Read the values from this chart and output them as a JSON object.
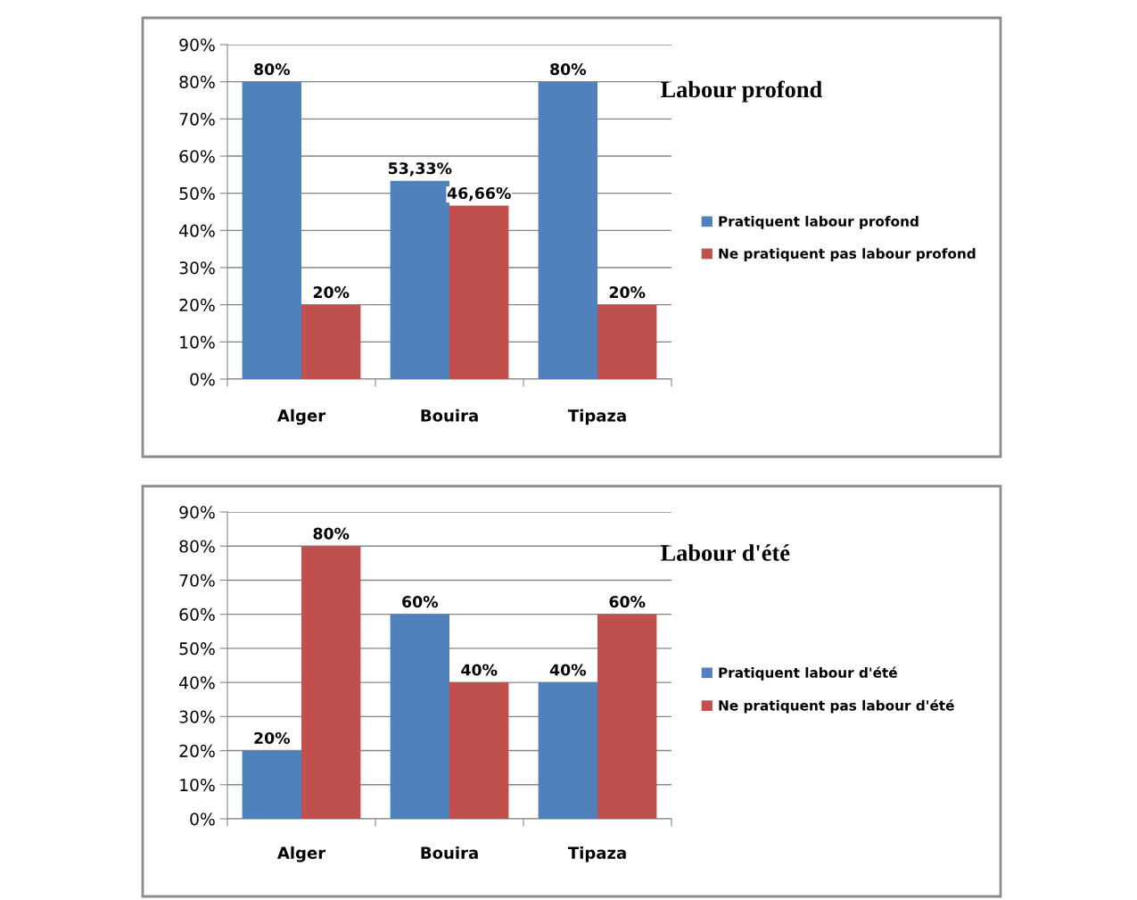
{
  "chart_data": [
    {
      "type": "bar",
      "title": "Labour profond",
      "categories": [
        "Alger",
        "Bouira",
        "Tipaza"
      ],
      "series": [
        {
          "name": "Pratiquent labour profond",
          "color": "#4f81bd",
          "values": [
            80,
            53.33,
            80
          ],
          "value_labels": [
            "80%",
            "53,33%",
            "80%"
          ]
        },
        {
          "name": "Ne pratiquent pas labour profond",
          "color": "#c0504d",
          "values": [
            20,
            46.66,
            20
          ],
          "value_labels": [
            "20%",
            "46,66%",
            "20%"
          ]
        }
      ],
      "ylim": [
        0,
        90
      ],
      "yticks": [
        {
          "value": 0,
          "label": "0%"
        },
        {
          "value": 10,
          "label": "10%"
        },
        {
          "value": 20,
          "label": "20%"
        },
        {
          "value": 30,
          "label": "30%"
        },
        {
          "value": 40,
          "label": "40%"
        },
        {
          "value": 50,
          "label": "50%"
        },
        {
          "value": 60,
          "label": "60%"
        },
        {
          "value": 70,
          "label": "70%"
        },
        {
          "value": 80,
          "label": "80%"
        },
        {
          "value": 90,
          "label": "90%"
        }
      ],
      "grid": "y",
      "legend": "right"
    },
    {
      "type": "bar",
      "title": "Labour d'été",
      "categories": [
        "Alger",
        "Bouira",
        "Tipaza"
      ],
      "series": [
        {
          "name": "Pratiquent labour d'été",
          "color": "#4f81bd",
          "values": [
            20,
            60,
            40
          ],
          "value_labels": [
            "20%",
            "60%",
            "40%"
          ]
        },
        {
          "name": "Ne pratiquent pas labour d'été",
          "color": "#c0504d",
          "values": [
            80,
            40,
            60
          ],
          "value_labels": [
            "80%",
            "40%",
            "60%"
          ]
        }
      ],
      "ylim": [
        0,
        90
      ],
      "yticks": [
        {
          "value": 0,
          "label": "0%"
        },
        {
          "value": 10,
          "label": "10%"
        },
        {
          "value": 20,
          "label": "20%"
        },
        {
          "value": 30,
          "label": "30%"
        },
        {
          "value": 40,
          "label": "40%"
        },
        {
          "value": 50,
          "label": "50%"
        },
        {
          "value": 60,
          "label": "60%"
        },
        {
          "value": 70,
          "label": "70%"
        },
        {
          "value": 80,
          "label": "80%"
        },
        {
          "value": 90,
          "label": "90%"
        }
      ],
      "grid": "y",
      "legend": "right"
    }
  ]
}
